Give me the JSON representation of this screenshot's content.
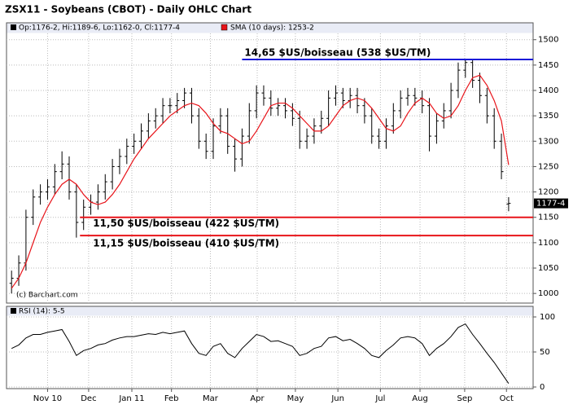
{
  "chart_data": [
    {
      "type": "ohlc",
      "title": "ZSX11 - Soybeans (CBOT) - Daily OHLC Chart",
      "ohlc_label": "Op:1176-2, Hi:1189-6, Lo:1162-0, Cl:1177-4",
      "source": "(c) Barchart.com",
      "last_label": "1177-4",
      "color": "#000000",
      "xlim": [
        -0.7,
        72.4
      ],
      "xticks": [
        {
          "value": 5,
          "label": "Nov 10"
        },
        {
          "value": 10.7,
          "label": "Dec"
        },
        {
          "value": 16.7,
          "label": "Jan 11"
        },
        {
          "value": 22.2,
          "label": "Feb"
        },
        {
          "value": 27.6,
          "label": "Mar"
        },
        {
          "value": 34.1,
          "label": "Apr"
        },
        {
          "value": 39.4,
          "label": "May"
        },
        {
          "value": 45.3,
          "label": "Jun"
        },
        {
          "value": 51.2,
          "label": "Jul"
        },
        {
          "value": 56.7,
          "label": "Aug"
        },
        {
          "value": 62.9,
          "label": "Sep"
        },
        {
          "value": 68.7,
          "label": "Oct"
        }
      ],
      "ylim": [
        981,
        1514
      ],
      "yticks": [
        1000,
        1050,
        1100,
        1150,
        1200,
        1250,
        1300,
        1350,
        1400,
        1450,
        1500
      ],
      "grid": true,
      "open": [
        1020,
        1030,
        1060,
        1150,
        1190,
        1200,
        1210,
        1240,
        1255,
        1200,
        1140,
        1170,
        1180,
        1200,
        1220,
        1250,
        1270,
        1290,
        1300,
        1320,
        1340,
        1350,
        1370,
        1370,
        1380,
        1395,
        1350,
        1300,
        1280,
        1330,
        1350,
        1290,
        1265,
        1310,
        1360,
        1395,
        1385,
        1365,
        1370,
        1360,
        1345,
        1300,
        1310,
        1330,
        1345,
        1385,
        1395,
        1380,
        1390,
        1370,
        1350,
        1310,
        1300,
        1330,
        1360,
        1385,
        1390,
        1385,
        1370,
        1310,
        1340,
        1360,
        1400,
        1440,
        1455,
        1420,
        1390,
        1350,
        1300,
        1176.25
      ],
      "high": [
        1045,
        1075,
        1165,
        1205,
        1215,
        1225,
        1255,
        1280,
        1270,
        1215,
        1185,
        1195,
        1215,
        1235,
        1265,
        1285,
        1305,
        1315,
        1335,
        1355,
        1365,
        1385,
        1385,
        1395,
        1405,
        1405,
        1365,
        1315,
        1345,
        1365,
        1365,
        1305,
        1325,
        1375,
        1410,
        1410,
        1400,
        1385,
        1385,
        1375,
        1360,
        1325,
        1345,
        1360,
        1400,
        1410,
        1405,
        1405,
        1405,
        1385,
        1365,
        1325,
        1345,
        1375,
        1400,
        1405,
        1405,
        1400,
        1385,
        1355,
        1375,
        1415,
        1455,
        1462,
        1460,
        1435,
        1405,
        1365,
        1315,
        1189.75
      ],
      "low": [
        1000,
        1015,
        1045,
        1135,
        1175,
        1185,
        1195,
        1225,
        1185,
        1110,
        1125,
        1155,
        1165,
        1185,
        1205,
        1235,
        1255,
        1275,
        1285,
        1305,
        1325,
        1335,
        1355,
        1355,
        1365,
        1335,
        1285,
        1265,
        1265,
        1315,
        1275,
        1240,
        1250,
        1295,
        1345,
        1370,
        1350,
        1350,
        1345,
        1330,
        1285,
        1285,
        1295,
        1315,
        1330,
        1370,
        1365,
        1365,
        1355,
        1335,
        1295,
        1285,
        1285,
        1315,
        1345,
        1370,
        1370,
        1355,
        1280,
        1295,
        1325,
        1345,
        1385,
        1425,
        1405,
        1375,
        1335,
        1285,
        1225,
        1162
      ],
      "close": [
        1030,
        1060,
        1150,
        1190,
        1200,
        1210,
        1240,
        1255,
        1200,
        1140,
        1170,
        1180,
        1200,
        1220,
        1250,
        1270,
        1290,
        1300,
        1320,
        1340,
        1350,
        1370,
        1370,
        1380,
        1395,
        1350,
        1300,
        1280,
        1330,
        1350,
        1290,
        1265,
        1310,
        1360,
        1395,
        1385,
        1365,
        1370,
        1360,
        1345,
        1300,
        1310,
        1330,
        1345,
        1385,
        1395,
        1380,
        1390,
        1370,
        1350,
        1310,
        1300,
        1330,
        1360,
        1385,
        1390,
        1385,
        1370,
        1310,
        1340,
        1360,
        1400,
        1440,
        1455,
        1420,
        1390,
        1350,
        1300,
        1240,
        1177.5
      ],
      "sma": {
        "name": "SMA (10 days): 1253-2",
        "color": "#e8141a",
        "values": [
          1010,
          1030,
          1060,
          1100,
          1140,
          1170,
          1195,
          1215,
          1225,
          1215,
          1195,
          1180,
          1175,
          1180,
          1195,
          1215,
          1240,
          1265,
          1285,
          1305,
          1320,
          1335,
          1350,
          1360,
          1370,
          1375,
          1370,
          1355,
          1335,
          1320,
          1315,
          1305,
          1295,
          1300,
          1320,
          1345,
          1370,
          1375,
          1375,
          1365,
          1350,
          1335,
          1320,
          1320,
          1330,
          1350,
          1370,
          1380,
          1385,
          1380,
          1365,
          1345,
          1325,
          1320,
          1330,
          1355,
          1375,
          1385,
          1375,
          1355,
          1345,
          1350,
          1370,
          1400,
          1425,
          1430,
          1410,
          1380,
          1340,
          1253.25
        ]
      },
      "annotations": [
        {
          "text": "14,65 $US/boisseau (538 $US/TM)",
          "value": 1461,
          "x0": 32,
          "color": "#1a1ad8"
        },
        {
          "text": "11,50 $US/boisseau (422 $US/TM)",
          "value": 1150,
          "x0": 9.5,
          "color": "#e8141a"
        },
        {
          "text": "11,15 $US/boisseau (410 $US/TM)",
          "value": 1114,
          "x0": 9.5,
          "color": "#e8141a"
        }
      ]
    },
    {
      "type": "line",
      "name": "RSI (14): 5-5",
      "color": "#000000",
      "ylim": [
        0,
        100
      ],
      "yticks": [
        0,
        50,
        100
      ],
      "values": [
        55,
        60,
        70,
        75,
        75,
        78,
        80,
        82,
        65,
        45,
        52,
        55,
        60,
        62,
        67,
        70,
        72,
        72,
        74,
        76,
        75,
        78,
        76,
        78,
        80,
        62,
        48,
        45,
        58,
        62,
        48,
        42,
        55,
        65,
        75,
        72,
        65,
        66,
        62,
        58,
        45,
        48,
        55,
        58,
        70,
        72,
        66,
        68,
        62,
        55,
        45,
        42,
        52,
        60,
        70,
        72,
        70,
        62,
        45,
        55,
        62,
        72,
        85,
        90,
        75,
        62,
        48,
        35,
        20,
        5
      ]
    }
  ]
}
